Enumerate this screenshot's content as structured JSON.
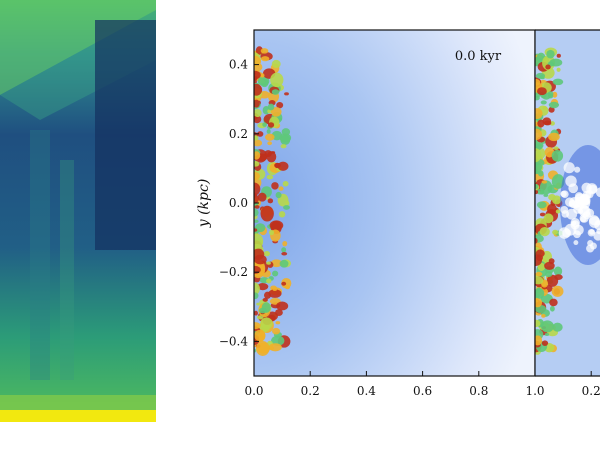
{
  "chart_data": {
    "type": "heatmap",
    "annotation": "0.0 kyr",
    "ylabel": "y (kpc)",
    "xlabel": "",
    "x_range": [
      0.0,
      1.0
    ],
    "y_range": [
      -0.5,
      0.5
    ],
    "x_ticks": [
      "0.0",
      "0.2",
      "0.4",
      "0.6",
      "0.8",
      "1.0"
    ],
    "y_ticks": [
      "0.4",
      "0.2",
      "0.0",
      "−0.2",
      "−0.4"
    ],
    "y_tick_values": [
      0.4,
      0.2,
      0.0,
      -0.2,
      -0.4
    ],
    "x_tick_values": [
      0.0,
      0.2,
      0.4,
      0.6,
      0.8,
      1.0
    ],
    "right_panel_x_ticks": [
      "0.2"
    ],
    "right_panel_x_tick_values": [
      0.2
    ],
    "legend": "none",
    "grid": false,
    "colors": {
      "background_field": "#8fb4ec",
      "background_edge": "#e9f0fd",
      "clump_hot": "#c0301c",
      "clump_warm": "#f0b02a",
      "clump_mid": "#b8d84a",
      "clump_cool": "#5ec87a",
      "left_panel_top": "#4cbd66",
      "left_panel_dark": "#1d3f74",
      "left_panel_bottom_stripe": "#f3ea10"
    }
  }
}
